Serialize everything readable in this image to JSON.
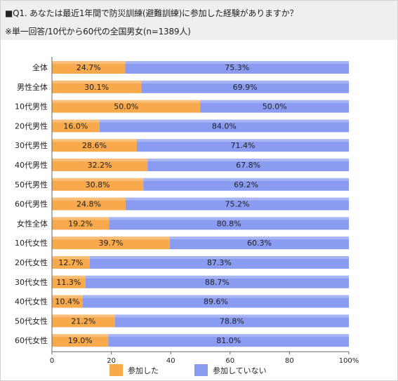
{
  "header": {
    "question": "■Q1. あなたは最近1年間で防災訓練(避難訓練)に参加した経験がありますか？",
    "note": "※単一回答/10代から60代の全国男女(n=1389人)"
  },
  "colors": {
    "participated": "#f7a94b",
    "not_participated": "#8a9cf2"
  },
  "chart_data": {
    "type": "bar",
    "orientation": "horizontal",
    "stacked": true,
    "percent_stacked": true,
    "categories": [
      "全体",
      "男性全体",
      "10代男性",
      "20代男性",
      "30代男性",
      "40代男性",
      "50代男性",
      "60代男性",
      "女性全体",
      "10代女性",
      "20代女性",
      "30代女性",
      "40代女性",
      "50代女性",
      "60代女性"
    ],
    "series": [
      {
        "name": "参加した",
        "values": [
          24.7,
          30.1,
          50.0,
          16.0,
          28.6,
          32.2,
          30.8,
          24.8,
          19.2,
          39.7,
          12.7,
          11.3,
          10.4,
          21.2,
          19.0
        ],
        "labels": [
          "24.7%",
          "30.1%",
          "50.0%",
          "16.0%",
          "28.6%",
          "32.2%",
          "30.8%",
          "24.8%",
          "19.2%",
          "39.7%",
          "12.7%",
          "11.3%",
          "10.4%",
          "21.2%",
          "19.0%"
        ]
      },
      {
        "name": "参加していない",
        "values": [
          75.3,
          69.9,
          50.0,
          84.0,
          71.4,
          67.8,
          69.2,
          75.2,
          80.8,
          60.3,
          87.3,
          88.7,
          89.6,
          78.8,
          81.0
        ],
        "labels": [
          "75.3%",
          "69.9%",
          "50.0%",
          "84.0%",
          "71.4%",
          "67.8%",
          "69.2%",
          "75.2%",
          "80.8%",
          "60.3%",
          "87.3%",
          "88.7%",
          "89.6%",
          "78.8%",
          "81.0%"
        ]
      }
    ],
    "x_ticks": [
      "0",
      "20",
      "40",
      "60",
      "80",
      "100%"
    ],
    "xlim": [
      0,
      100
    ],
    "grid": false,
    "legend_position": "bottom"
  }
}
